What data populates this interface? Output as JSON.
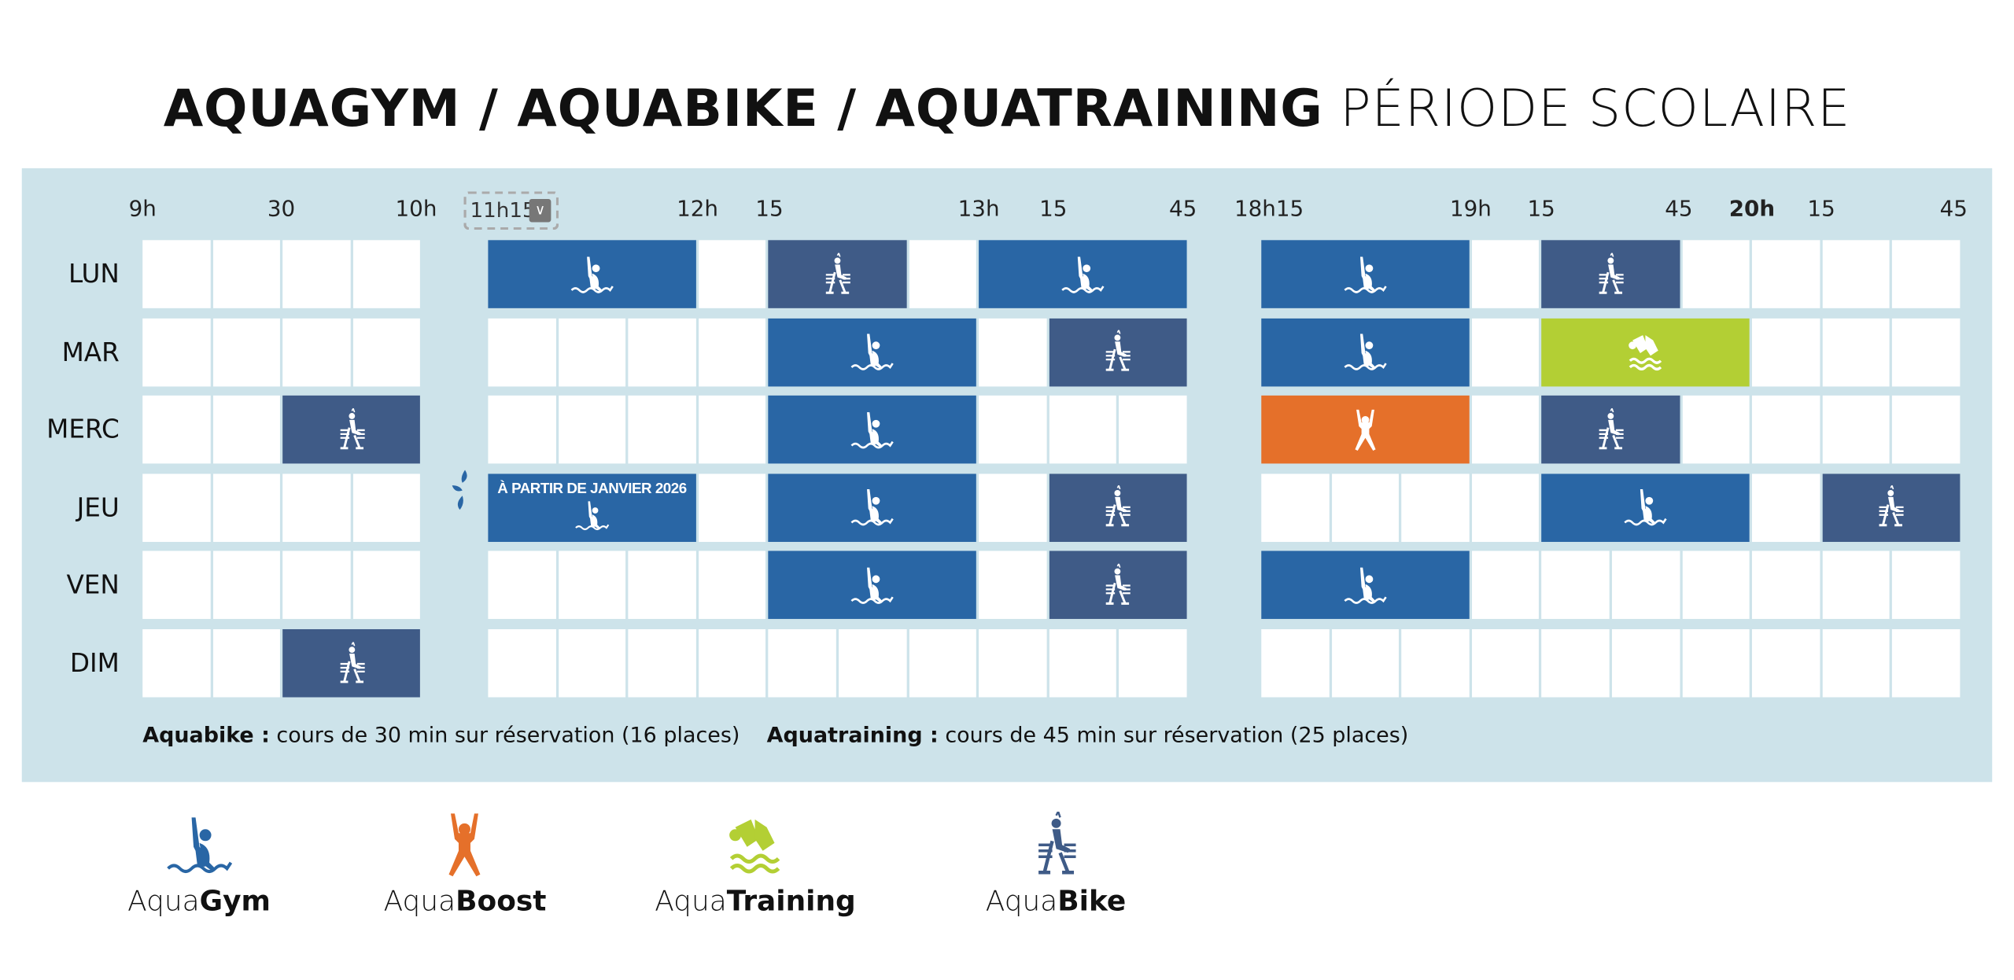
{
  "title": {
    "bold": "AQUAGYM / AQUABIKE / AQUATRAINING",
    "light": "PÉRIODE SCOLAIRE"
  },
  "colors": {
    "aquagym": "#2966a5",
    "aquabike": "#3f5b87",
    "aquatraining": "#b3cf34",
    "aquaboost": "#e5702a",
    "panel": "#cde3ea"
  },
  "time_headers": [
    {
      "label": "9h",
      "bold": false
    },
    {
      "label": "30",
      "bold": false
    },
    {
      "label": "10h",
      "bold": false
    },
    {
      "label": "12h",
      "bold": false
    },
    {
      "label": "15",
      "bold": false
    },
    {
      "label": "13h",
      "bold": false
    },
    {
      "label": "15",
      "bold": false
    },
    {
      "label": "45",
      "bold": false
    },
    {
      "label": "18h15",
      "bold": false
    },
    {
      "label": "19h",
      "bold": false
    },
    {
      "label": "15",
      "bold": false
    },
    {
      "label": "45",
      "bold": false
    },
    {
      "label": "20h",
      "bold": true
    },
    {
      "label": "15",
      "bold": false
    },
    {
      "label": "45",
      "bold": false
    }
  ],
  "time_select": {
    "value": "11h15",
    "icon": "chevron-down-icon"
  },
  "days": [
    {
      "label": "LUN",
      "blocks": [
        {
          "start": "11h15",
          "end": "12h00",
          "type": "aquagym"
        },
        {
          "start": "12h15",
          "end": "12h45",
          "type": "aquabike"
        },
        {
          "start": "13h00",
          "end": "13h45",
          "type": "aquagym"
        },
        {
          "start": "18h15",
          "end": "19h00",
          "type": "aquagym"
        },
        {
          "start": "19h15",
          "end": "19h45",
          "type": "aquabike"
        }
      ]
    },
    {
      "label": "MAR",
      "blocks": [
        {
          "start": "12h15",
          "end": "13h00",
          "type": "aquagym"
        },
        {
          "start": "13h15",
          "end": "13h45",
          "type": "aquabike"
        },
        {
          "start": "18h15",
          "end": "19h00",
          "type": "aquagym"
        },
        {
          "start": "19h15",
          "end": "20h00",
          "type": "aquatraining"
        }
      ]
    },
    {
      "label": "MERC",
      "blocks": [
        {
          "start": "9h30",
          "end": "10h00",
          "type": "aquabike"
        },
        {
          "start": "12h15",
          "end": "13h00",
          "type": "aquagym"
        },
        {
          "start": "18h15",
          "end": "19h00",
          "type": "aquaboost"
        },
        {
          "start": "19h15",
          "end": "19h45",
          "type": "aquabike"
        }
      ]
    },
    {
      "label": "JEU",
      "blocks": [
        {
          "start": "11h15",
          "end": "12h00",
          "type": "aquagym",
          "note": "À PARTIR DE JANVIER 2026"
        },
        {
          "start": "12h15",
          "end": "13h00",
          "type": "aquagym"
        },
        {
          "start": "13h15",
          "end": "13h45",
          "type": "aquabike"
        },
        {
          "start": "19h15",
          "end": "20h00",
          "type": "aquagym"
        },
        {
          "start": "20h15",
          "end": "20h45",
          "type": "aquabike"
        }
      ]
    },
    {
      "label": "VEN",
      "blocks": [
        {
          "start": "12h15",
          "end": "13h00",
          "type": "aquagym"
        },
        {
          "start": "13h15",
          "end": "13h45",
          "type": "aquabike"
        },
        {
          "start": "18h15",
          "end": "19h00",
          "type": "aquagym"
        }
      ]
    },
    {
      "label": "DIM",
      "blocks": [
        {
          "start": "9h30",
          "end": "10h00",
          "type": "aquabike"
        }
      ]
    }
  ],
  "footnote": {
    "aquabike_label": "Aquabike :",
    "aquabike_text": "cours de 30 min sur réservation (16 places)",
    "aquatraining_label": "Aquatraining :",
    "aquatraining_text": "cours de 45 min sur réservation (25 places)"
  },
  "legend": [
    {
      "type": "aquagym",
      "prefix": "Aqua",
      "name": "Gym",
      "icon": "swimmer-icon"
    },
    {
      "type": "aquaboost",
      "prefix": "Aqua",
      "name": "Boost",
      "icon": "jumping-person-icon"
    },
    {
      "type": "aquatraining",
      "prefix": "Aqua",
      "name": "Training",
      "icon": "training-icon"
    },
    {
      "type": "aquabike",
      "prefix": "Aqua",
      "name": "Bike",
      "icon": "bike-icon"
    }
  ]
}
